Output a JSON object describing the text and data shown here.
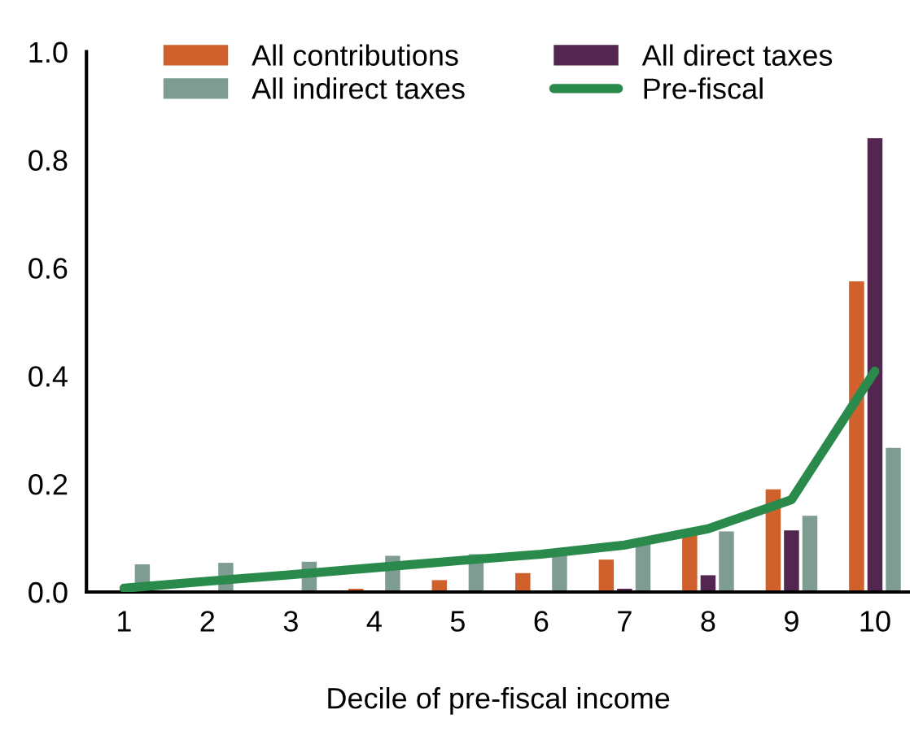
{
  "chart_data": {
    "type": "bar",
    "xlabel": "Decile of pre-fiscal income",
    "categories": [
      "1",
      "2",
      "3",
      "4",
      "5",
      "6",
      "7",
      "8",
      "9",
      "10"
    ],
    "series": [
      {
        "name": "All contributions",
        "color": "#d0602c",
        "values": [
          0,
          0,
          null,
          0.006,
          0.022,
          0.035,
          0.06,
          0.107,
          0.19,
          0.575
        ]
      },
      {
        "name": "All direct taxes",
        "color": "#52264f",
        "values": [
          0,
          0,
          0,
          0,
          0.001,
          0.003,
          0.006,
          0.031,
          0.114,
          0.84
        ]
      },
      {
        "name": "All indirect taxes",
        "color": "#7f9c92",
        "values": [
          0.051,
          0.054,
          0.056,
          0.067,
          0.07,
          0.07,
          0.088,
          0.112,
          0.141,
          0.267
        ]
      },
      {
        "name": "Pre-fiscal",
        "type": "line",
        "color": "#2a8a4c",
        "values": [
          0.007,
          0.02,
          0.032,
          0.045,
          0.058,
          0.07,
          0.087,
          0.117,
          0.171,
          0.409
        ]
      }
    ],
    "ylim": [
      0,
      1.0
    ],
    "yticks": [
      {
        "value": 0,
        "label": "0.0"
      },
      0.2,
      0.4,
      0.6,
      0.8,
      {
        "value": 1.0,
        "label": "1.0"
      }
    ],
    "grid": false,
    "legend": "top",
    "marker": "none",
    "line_style": "solid"
  }
}
